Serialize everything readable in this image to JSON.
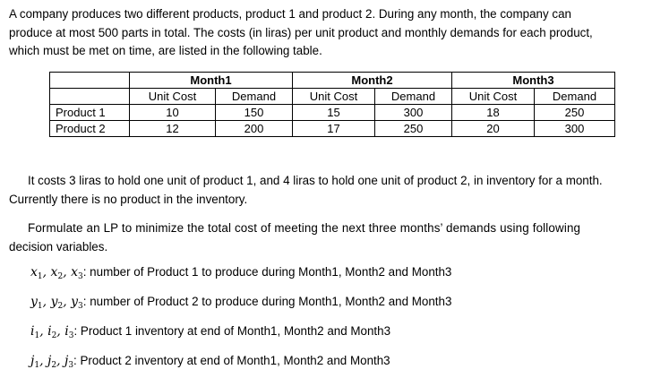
{
  "intro": {
    "lines": [
      "A company produces two different products, product 1 and product 2. During any month, the company can",
      "produce at most 500 parts in total. The costs (in liras) per unit product and monthly demands for each product,",
      "which must be met on time, are listed in the following table."
    ]
  },
  "table": {
    "months": [
      "Month1",
      "Month2",
      "Month3"
    ],
    "subheaders": [
      "Unit Cost",
      "Demand",
      "Unit Cost",
      "Demand",
      "Unit Cost",
      "Demand"
    ],
    "rows": [
      {
        "label": "Product 1",
        "values": [
          "10",
          "150",
          "15",
          "300",
          "18",
          "250"
        ]
      },
      {
        "label": "Product 2",
        "values": [
          "12",
          "200",
          "17",
          "250",
          "20",
          "300"
        ]
      }
    ]
  },
  "holding": {
    "line1": "It costs 3 liras to hold one unit of product 1, and 4 liras to hold one unit of product 2, in inventory for a month.",
    "line2": "Currently there is no product in the inventory."
  },
  "task": {
    "line1": "Formulate an LP to minimize the total cost of meeting the next three months’ demands using following",
    "line2": "decision variables."
  },
  "variables": [
    {
      "symbol": "x",
      "desc": ": number of Product 1 to produce during Month1, Month2 and Month3"
    },
    {
      "symbol": "y",
      "desc": ": number of Product 2 to produce during Month1, Month2 and Month3"
    },
    {
      "symbol": "i",
      "desc": ":  Product 1 inventory at end of Month1, Month2 and Month3"
    },
    {
      "symbol": "j",
      "desc": ": Product 2 inventory at end of Month1, Month2 and Month3"
    }
  ],
  "subscripts": [
    "1",
    "2",
    "3"
  ]
}
